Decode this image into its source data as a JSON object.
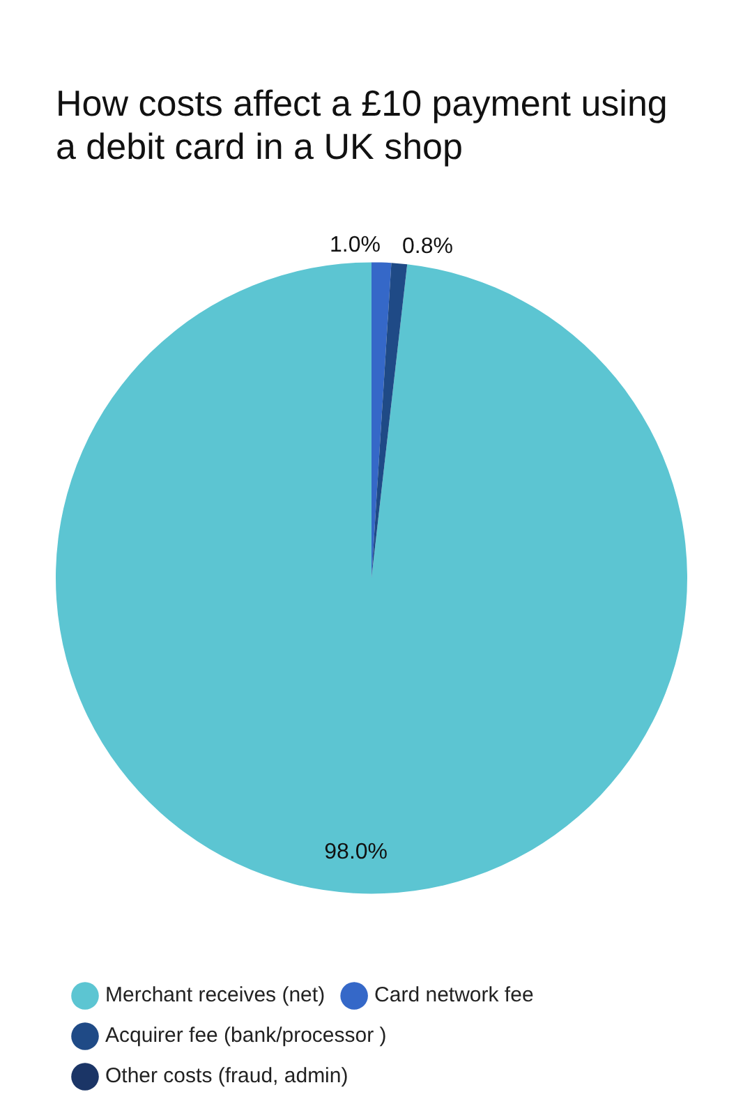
{
  "chart_data": {
    "type": "pie",
    "title": "How costs affect a £10 payment using a debit card in a UK shop",
    "categories": [
      "Merchant receives (net)",
      "Card network fee",
      "Acquirer fee (bank/processor )",
      "Other costs (fraud, admin)"
    ],
    "values": [
      98.0,
      1.0,
      0.8,
      null
    ],
    "colors": [
      "#5cc5d2",
      "#3568c8",
      "#1f4a86",
      "#1b3566"
    ],
    "value_labels": [
      "98.0%",
      "1.0%",
      "0.8%",
      null
    ],
    "legend": "bottom left"
  }
}
